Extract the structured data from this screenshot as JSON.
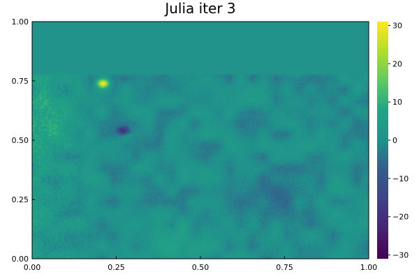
{
  "chart_data": {
    "type": "heatmap",
    "title": "Julia iter 3",
    "xlabel": "",
    "ylabel": "",
    "xlim": [
      0,
      1
    ],
    "ylim": [
      0,
      1
    ],
    "x_ticks": [
      "0.00",
      "0.25",
      "0.50",
      "0.75",
      "1.00"
    ],
    "y_ticks": [
      "0.00",
      "0.25",
      "0.50",
      "0.75",
      "1.00"
    ],
    "colorbar": {
      "colormap": "viridis",
      "range": [
        -31,
        31
      ],
      "ticks": [
        "−30",
        "−20",
        "−10",
        "0",
        "10",
        "20",
        "30"
      ],
      "tick_values": [
        -30,
        -20,
        -10,
        0,
        10,
        20,
        30
      ]
    },
    "grid": false,
    "legend": "none",
    "field_description": {
      "background_value": 0,
      "uniform_band_y": [
        0.78,
        1.0
      ],
      "uniform_band_value": 1,
      "features": [
        {
          "x": 0.21,
          "y": 0.74,
          "value": 28
        },
        {
          "x": 0.27,
          "y": 0.54,
          "value": -22
        },
        {
          "x": 0.7,
          "y": 0.28,
          "value": -8
        },
        {
          "x": 0.45,
          "y": 0.05,
          "value": 8
        },
        {
          "x": 0.08,
          "y": 0.6,
          "value": 9
        }
      ]
    }
  }
}
